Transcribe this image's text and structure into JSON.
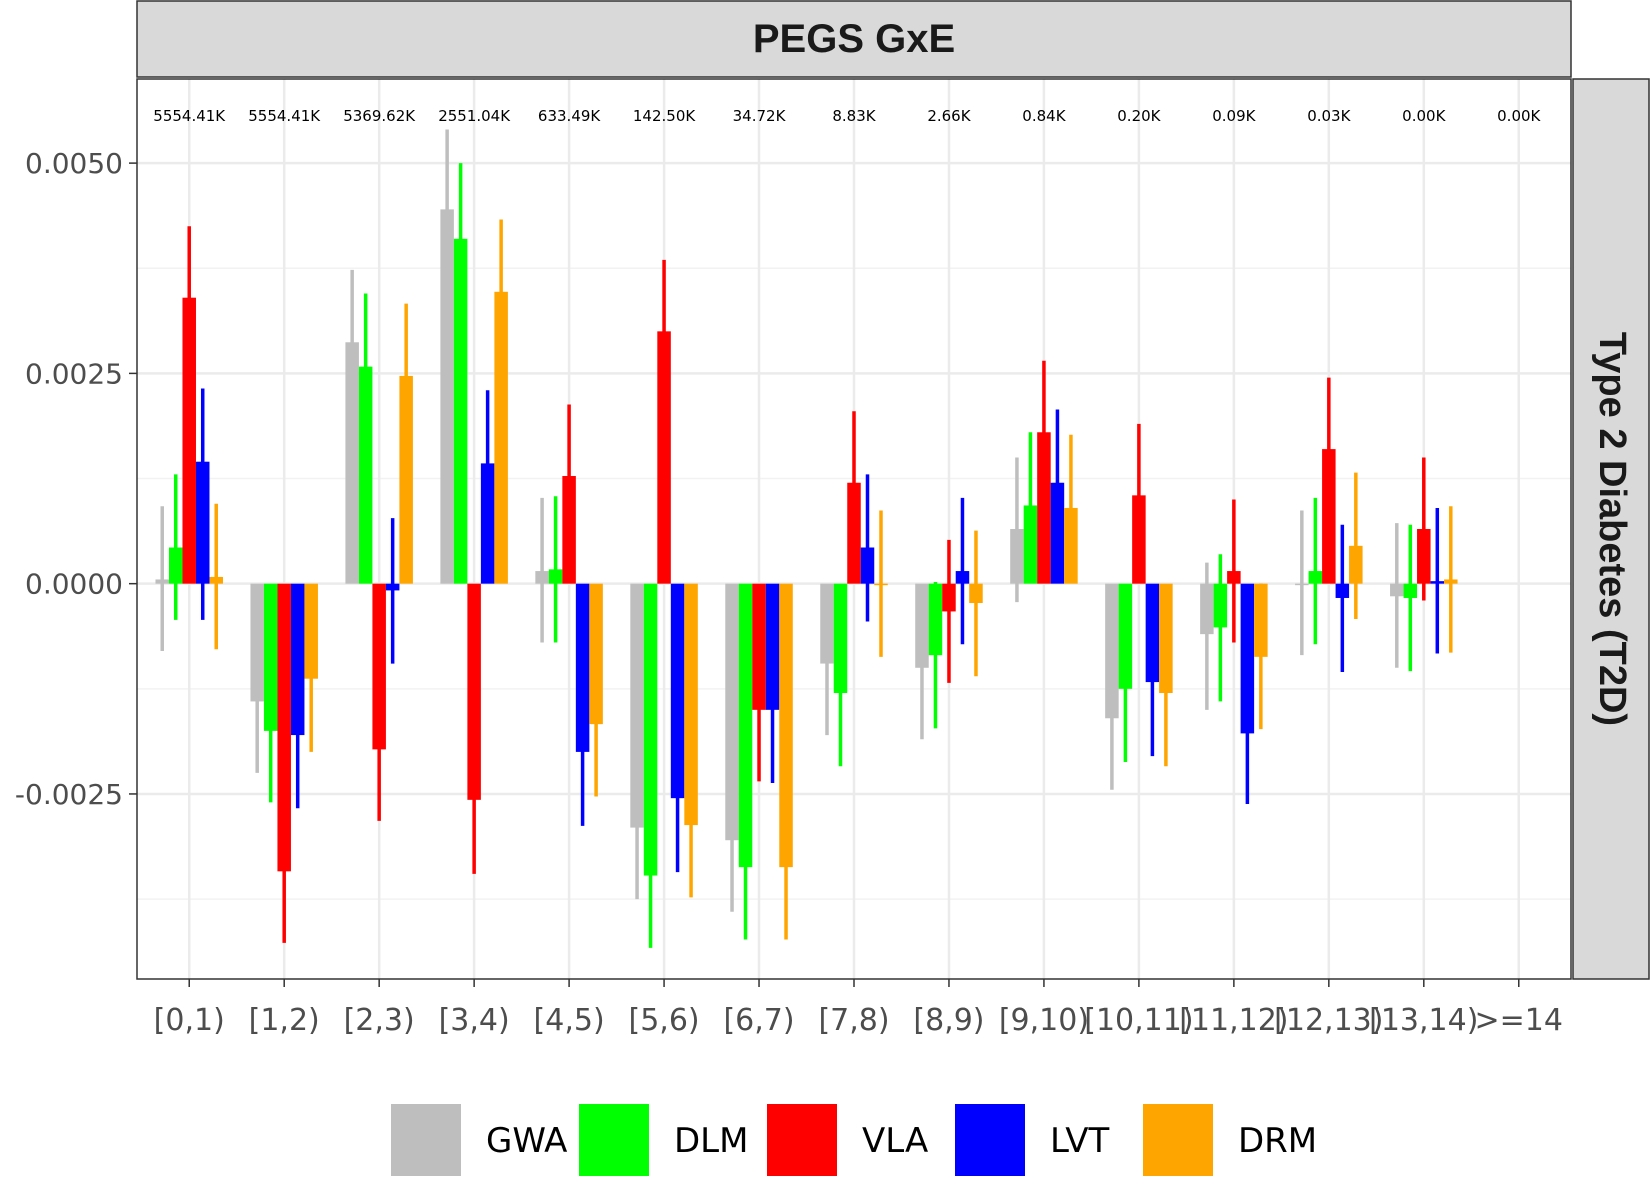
{
  "chart_data": {
    "type": "bar",
    "title": "PEGS GxE",
    "facet_label": "Type 2 Diabetes (T2D)",
    "xlabel": "",
    "ylabel": "",
    "ylim": [
      -0.0047,
      0.006
    ],
    "yticks": [
      -0.0025,
      0.0,
      0.0025,
      0.005
    ],
    "ytick_labels": [
      "-0.0025",
      "0.0000",
      "0.0025",
      "0.0050"
    ],
    "grid": true,
    "legend_position": "bottom",
    "categories": [
      "[0,1)",
      "[1,2)",
      "[2,3)",
      "[3,4)",
      "[4,5)",
      "[5,6)",
      "[6,7)",
      "[7,8)",
      "[8,9)",
      "[9,10)",
      "[10,11)",
      "[11,12)",
      "[12,13)",
      "[13,14)",
      ">=14"
    ],
    "counts": [
      "5554.41K",
      "5554.41K",
      "5369.62K",
      "2551.04K",
      "633.49K",
      "142.50K",
      "34.72K",
      "8.83K",
      "2.66K",
      "0.84K",
      "0.20K",
      "0.09K",
      "0.03K",
      "0.00K",
      "0.00K"
    ],
    "series": [
      {
        "name": "GWA",
        "color": "#bebebe",
        "values": [
          5e-05,
          -0.0014,
          0.00287,
          0.00445,
          0.00015,
          -0.0029,
          -0.00305,
          -0.00095,
          -0.001,
          0.00065,
          -0.0016,
          -0.0006,
          0.0,
          -0.00015,
          null
        ],
        "lower": [
          -0.0008,
          -0.00225,
          0.002,
          0.0035,
          -0.0007,
          -0.00375,
          -0.0039,
          -0.0018,
          -0.00185,
          -0.00022,
          -0.00245,
          -0.0015,
          -0.00085,
          -0.001,
          null
        ],
        "upper": [
          0.00092,
          -0.00055,
          0.00373,
          0.0054,
          0.00102,
          -0.00205,
          -0.0022,
          -0.0001,
          -0.00015,
          0.0015,
          -0.00075,
          0.00025,
          0.00087,
          0.00072,
          null
        ]
      },
      {
        "name": "DLM",
        "color": "#00ff00",
        "values": [
          0.00043,
          -0.00175,
          0.00258,
          0.0041,
          0.00017,
          -0.00347,
          -0.00337,
          -0.0013,
          -0.00085,
          0.00093,
          -0.00125,
          -0.00052,
          0.00015,
          -0.00017,
          null
        ],
        "lower": [
          -0.00043,
          -0.0026,
          0.00172,
          0.0032,
          -0.0007,
          -0.00433,
          -0.00423,
          -0.00217,
          -0.00172,
          8e-05,
          -0.00212,
          -0.0014,
          -0.00072,
          -0.00104,
          null
        ],
        "upper": [
          0.0013,
          -0.0009,
          0.00345,
          0.005,
          0.00104,
          -0.0026,
          -0.0025,
          -0.00043,
          2e-05,
          0.0018,
          -0.00038,
          0.00035,
          0.00102,
          0.0007,
          null
        ]
      },
      {
        "name": "VLA",
        "color": "#ff0000",
        "values": [
          0.0034,
          -0.00342,
          -0.00197,
          -0.00257,
          0.00128,
          0.003,
          -0.0015,
          0.0012,
          -0.00033,
          0.0018,
          0.00105,
          0.00015,
          0.0016,
          0.00065,
          null
        ],
        "lower": [
          0.00255,
          -0.00427,
          -0.00282,
          -0.00345,
          0.00043,
          0.00215,
          -0.00235,
          0.00035,
          -0.00118,
          0.00095,
          0.0002,
          -0.0007,
          0.00075,
          -0.0002,
          null
        ],
        "upper": [
          0.00425,
          -0.00257,
          -0.00112,
          -0.0017,
          0.00213,
          0.00385,
          -0.00065,
          0.00205,
          0.00052,
          0.00265,
          0.0019,
          0.001,
          0.00245,
          0.0015,
          null
        ]
      },
      {
        "name": "LVT",
        "color": "#0000ff",
        "values": [
          0.00145,
          -0.0018,
          -8e-05,
          0.00143,
          -0.002,
          -0.00255,
          -0.0015,
          0.00043,
          0.00015,
          0.0012,
          -0.00117,
          -0.00178,
          -0.00017,
          3e-05,
          null
        ],
        "lower": [
          -0.00043,
          -0.00267,
          -0.00095,
          0.00057,
          -0.00288,
          -0.00343,
          -0.00237,
          -0.00045,
          -0.00072,
          0.00033,
          -0.00205,
          -0.00262,
          -0.00105,
          -0.00083,
          null
        ],
        "upper": [
          0.00232,
          -0.00093,
          0.00078,
          0.0023,
          -0.00113,
          -0.00168,
          -0.00063,
          0.0013,
          0.00102,
          0.00207,
          -0.0003,
          -0.00095,
          0.0007,
          0.0009,
          null
        ]
      },
      {
        "name": "DRM",
        "color": "#ffa500",
        "values": [
          8e-05,
          -0.00113,
          0.00247,
          0.00347,
          -0.00167,
          -0.00287,
          -0.00337,
          0.0,
          -0.00023,
          0.0009,
          -0.0013,
          -0.00087,
          0.00045,
          5e-05,
          null
        ],
        "lower": [
          -0.00078,
          -0.002,
          0.0016,
          0.0026,
          -0.00253,
          -0.00373,
          -0.00423,
          -0.00087,
          -0.0011,
          3e-05,
          -0.00217,
          -0.00173,
          -0.00042,
          -0.00082,
          null
        ],
        "upper": [
          0.00095,
          -0.00027,
          0.00333,
          0.00433,
          -0.0008,
          -0.002,
          -0.0025,
          0.00087,
          0.00063,
          0.00177,
          -0.00043,
          0.0,
          0.00132,
          0.00092,
          null
        ]
      }
    ]
  }
}
